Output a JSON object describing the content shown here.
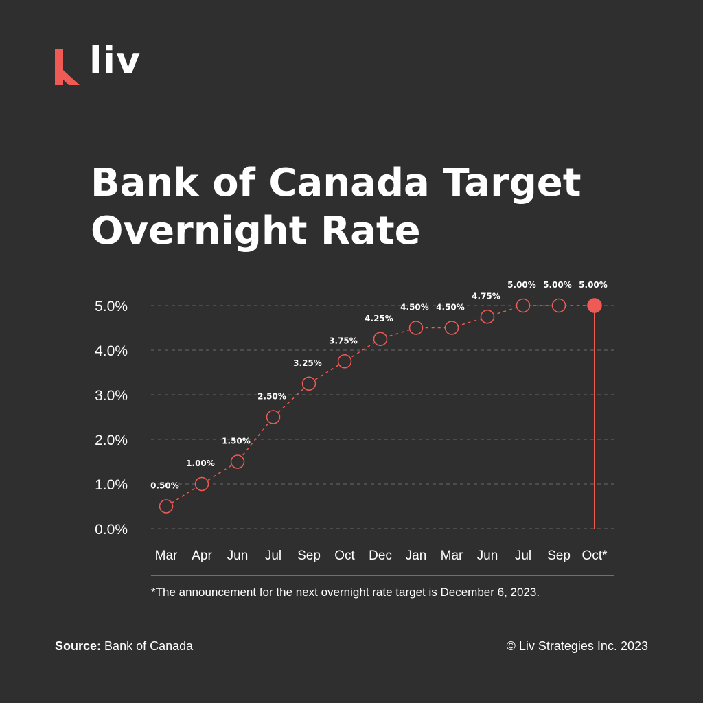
{
  "brand": {
    "name": "liv",
    "accent": "#f05a55",
    "logo_icon": "liv-logo-icon"
  },
  "title": {
    "line1": "Bank of Canada Target",
    "line2": "Overnight Rate"
  },
  "footnote": "*The announcement for the next overnight rate target is December 6, 2023.",
  "source": {
    "label": "Source:",
    "value": "Bank of Canada"
  },
  "copyright": "© Liv Strategies Inc. 2023",
  "chart_data": {
    "type": "line",
    "title": "Bank of Canada Target Overnight Rate",
    "xlabel": "",
    "ylabel": "",
    "categories": [
      "Mar",
      "Apr",
      "Jun",
      "Jul",
      "Sep",
      "Oct",
      "Dec",
      "Jan",
      "Mar",
      "Jun",
      "Jul",
      "Sep",
      "Oct*"
    ],
    "values": [
      0.5,
      1.0,
      1.5,
      2.5,
      3.25,
      3.75,
      4.25,
      4.5,
      4.5,
      4.75,
      5.0,
      5.0,
      5.0
    ],
    "data_labels": [
      "0.50%",
      "1.00%",
      "1.50%",
      "2.50%",
      "3.25%",
      "3.75%",
      "4.25%",
      "4.50%",
      "4.50%",
      "4.75%",
      "5.00%",
      "5.00%",
      "5.00%"
    ],
    "y_ticks": [
      "0.0%",
      "1.0%",
      "2.0%",
      "3.0%",
      "4.0%",
      "5.0%"
    ],
    "y_tick_values": [
      0,
      1,
      2,
      3,
      4,
      5
    ],
    "ylim": [
      0,
      5
    ],
    "grid": true,
    "legend": "none",
    "line_style": "dashed",
    "marker_style": "hollow-circle",
    "highlight_last_point": true,
    "colors": {
      "line": "#f05a55",
      "grid": "#6a6a6a",
      "text": "#ffffff"
    }
  }
}
